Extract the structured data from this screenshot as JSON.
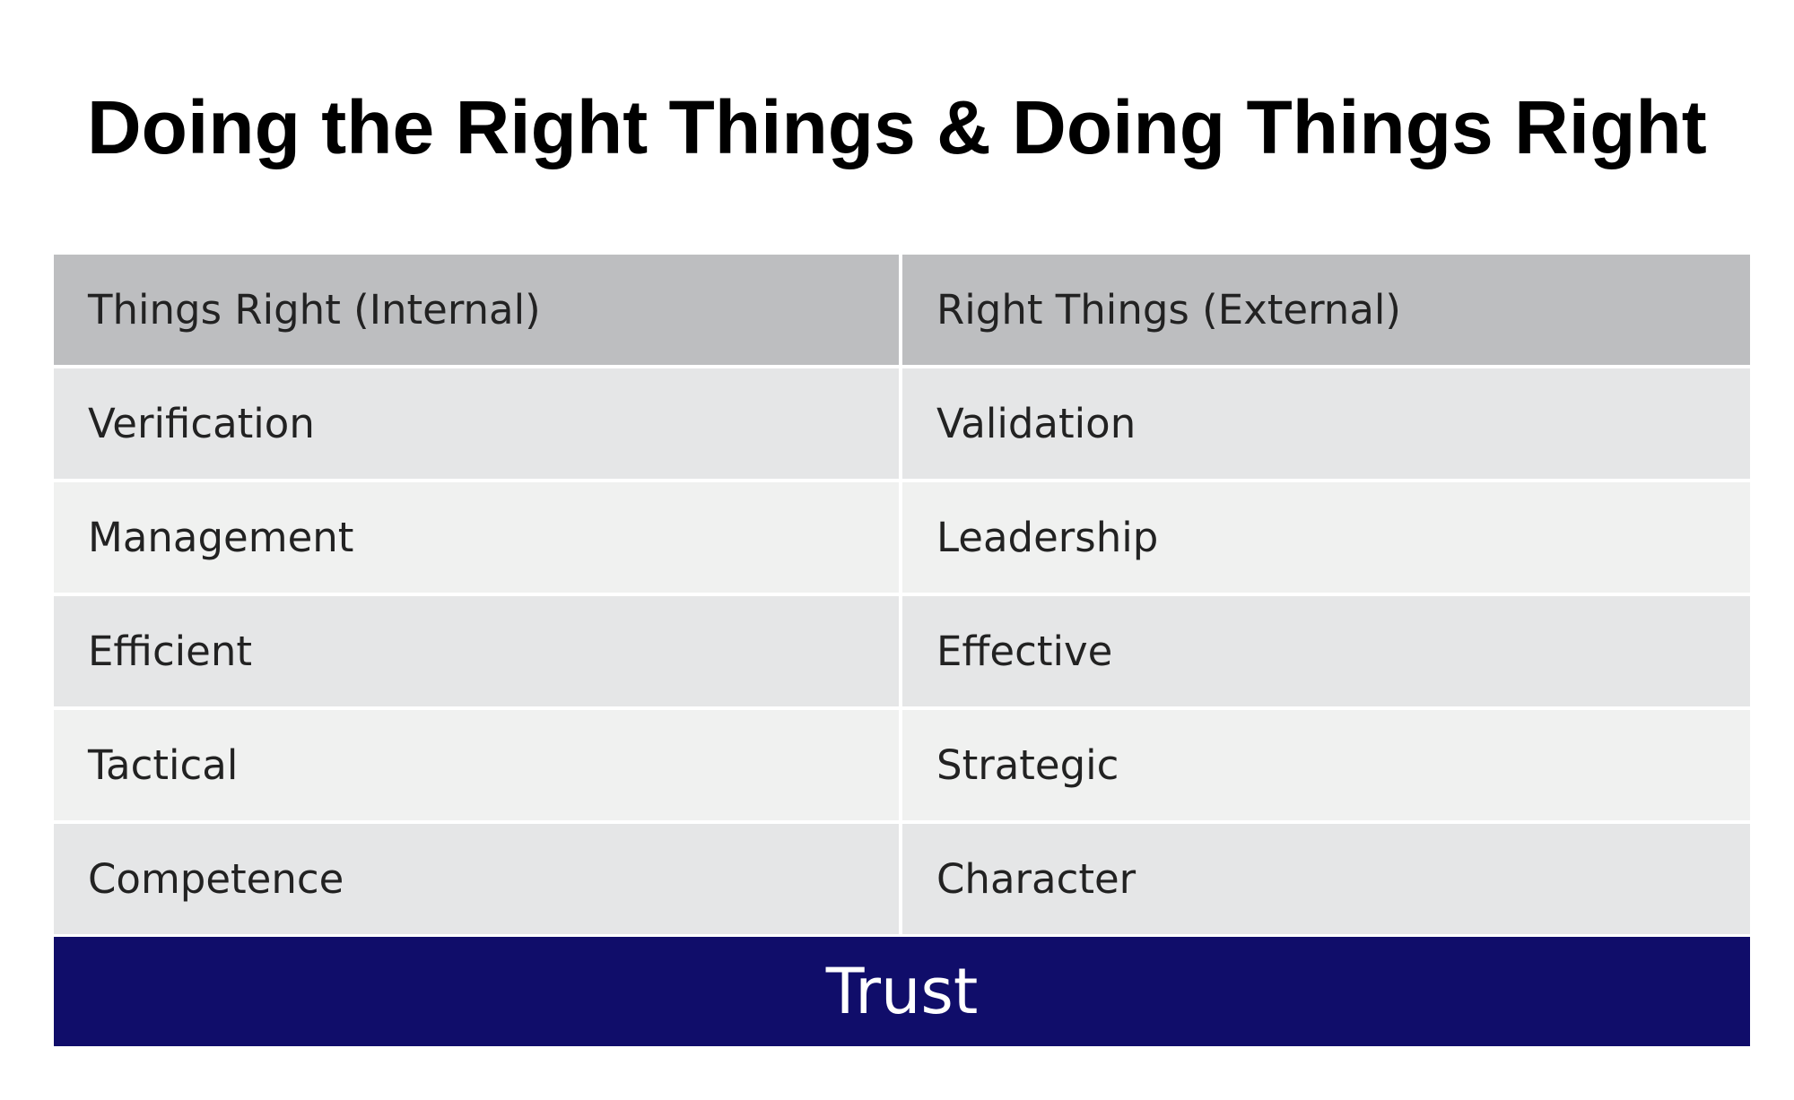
{
  "title": "Doing the Right Things & Doing Things Right",
  "table": {
    "headers": [
      "Things Right (Internal)",
      "Right Things (External)"
    ],
    "rows": [
      [
        "Verification",
        "Validation"
      ],
      [
        "Management",
        "Leadership"
      ],
      [
        "Efficient",
        "Effective"
      ],
      [
        "Tactical",
        "Strategic"
      ],
      [
        "Competence",
        "Character"
      ]
    ]
  },
  "footer": {
    "label": "Trust"
  },
  "colors": {
    "header_bg": "#bdbec0",
    "row_bg_a": "#e5e6e7",
    "row_bg_b": "#f0f1f0",
    "footer_bg": "#100d6a",
    "footer_text": "#ffffff"
  }
}
